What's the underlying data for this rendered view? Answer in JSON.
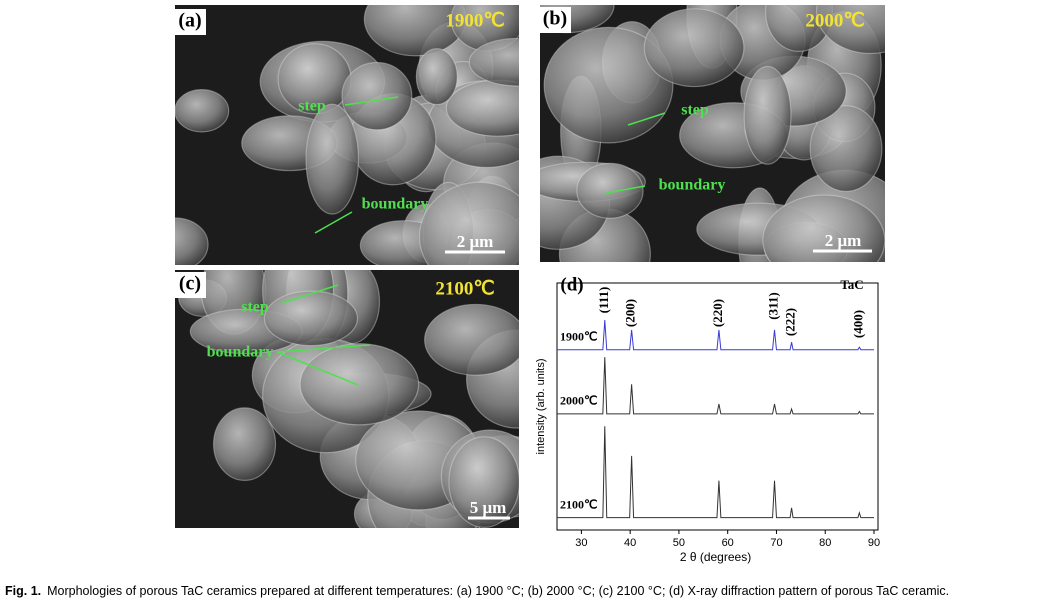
{
  "panels": [
    {
      "label": "(a)",
      "temperature": "1900℃",
      "annotations": [
        "step",
        "boundary"
      ],
      "scale_bar": "2 μm"
    },
    {
      "label": "(b)",
      "temperature": "2000℃",
      "annotations": [
        "step",
        "boundary"
      ],
      "scale_bar": "2 μm"
    },
    {
      "label": "(c)",
      "temperature": "2100℃",
      "annotations": [
        "step",
        "boundary"
      ],
      "scale_bar": "5 μm"
    }
  ],
  "chart_data": {
    "type": "line",
    "panel_label": "(d)",
    "title": "TaC",
    "x_label": "2 θ (degrees)",
    "y_label": "intensity (arb. units)",
    "xlim": [
      25,
      90
    ],
    "xticks": [
      30,
      40,
      50,
      60,
      70,
      80,
      90
    ],
    "ylim": [
      0,
      100
    ],
    "x": [
      25,
      34.4,
      34.8,
      35.2,
      39.9,
      40.3,
      40.7,
      57.8,
      58.2,
      58.6,
      69.2,
      69.6,
      70.0,
      72.8,
      73.1,
      73.4,
      86.7,
      87.0,
      87.3,
      90
    ],
    "series": [
      {
        "name": "1900℃",
        "color": "#3b3bd6",
        "values": [
          73,
          73,
          85,
          73,
          73,
          81,
          73,
          73,
          81,
          73,
          73,
          81,
          73,
          73,
          76,
          73,
          73,
          74,
          73,
          73
        ]
      },
      {
        "name": "2000℃",
        "color": "#333333",
        "values": [
          47,
          47,
          70,
          47,
          47,
          59,
          47,
          47,
          51,
          47,
          47,
          51,
          47,
          47,
          49,
          47,
          47,
          48,
          47,
          47
        ]
      },
      {
        "name": "2100℃",
        "color": "#333333",
        "values": [
          5,
          5,
          42,
          5,
          5,
          30,
          5,
          5,
          20,
          5,
          5,
          20,
          5,
          5,
          9,
          5,
          5,
          7,
          5,
          5
        ]
      }
    ],
    "peak_labels": [
      {
        "label": "(111)",
        "x": 34.8
      },
      {
        "label": "(200)",
        "x": 40.3
      },
      {
        "label": "(220)",
        "x": 58.2
      },
      {
        "label": "(311)",
        "x": 69.6
      },
      {
        "label": "(222)",
        "x": 73.1
      },
      {
        "label": "(400)",
        "x": 87.0
      }
    ]
  },
  "caption": {
    "label": "Fig. 1.",
    "text": "Morphologies of porous TaC ceramics prepared at different temperatures: (a) 1900 °C; (b) 2000 °C; (c) 2100 °C; (d) X-ray diffraction pattern of porous TaC ceramic."
  }
}
